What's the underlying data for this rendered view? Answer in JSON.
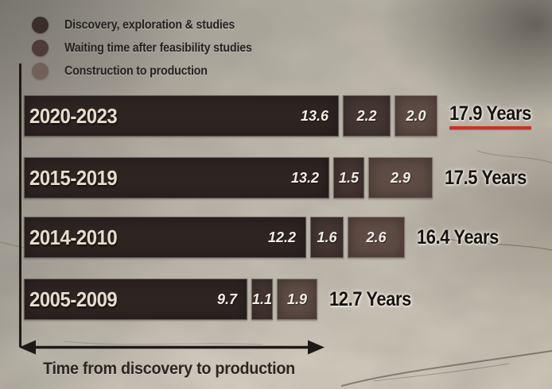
{
  "legend": {
    "items": [
      {
        "key": "discovery",
        "label": "Discovery, exploration & studies",
        "color": "#3a2e2a"
      },
      {
        "key": "waiting",
        "label": "Waiting time after feasibility studies",
        "color": "#4d3c37"
      },
      {
        "key": "construction",
        "label": "Construction to production",
        "color": "#72605a"
      }
    ]
  },
  "chart_data": {
    "type": "bar",
    "orientation": "horizontal",
    "stacked": true,
    "title": "",
    "xlabel": "Time from discovery to production",
    "unit": "Years",
    "categories": [
      "2020-2023",
      "2015-2019",
      "2014-2010",
      "2005-2009"
    ],
    "series": [
      {
        "key": "discovery",
        "name": "Discovery, exploration & studies",
        "color": "#2e2523",
        "values": [
          13.6,
          13.2,
          12.2,
          9.7
        ]
      },
      {
        "key": "waiting",
        "name": "Waiting time after feasibility studies",
        "color": "#463733",
        "values": [
          2.2,
          1.5,
          1.6,
          1.1
        ]
      },
      {
        "key": "construction",
        "name": "Construction to production",
        "color": "#5f4c45",
        "values": [
          2.0,
          2.9,
          2.6,
          1.9
        ]
      }
    ],
    "totals": [
      17.9,
      17.5,
      16.4,
      12.7
    ],
    "highlighted_row": 0,
    "highlight_color": "#cf2f24",
    "axis_color": "#1d1915",
    "xlim": [
      0,
      19
    ],
    "grid": false,
    "legend_position": "top-left"
  }
}
